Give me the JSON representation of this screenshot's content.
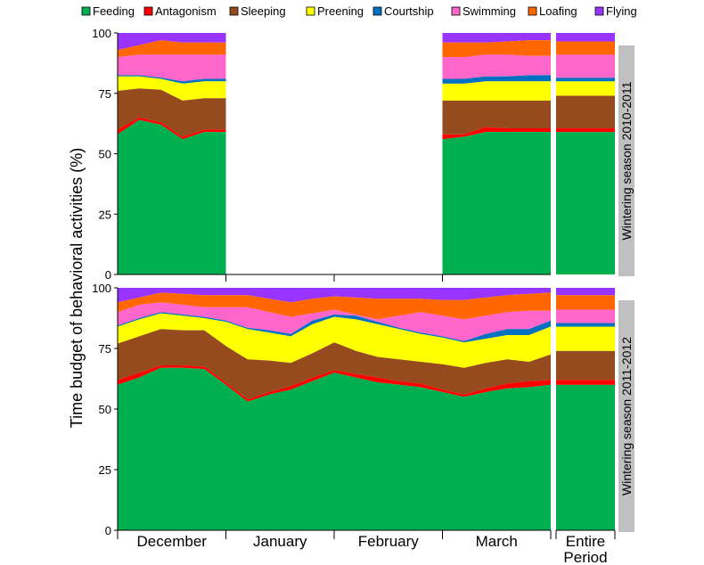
{
  "chart_data": {
    "type": "area",
    "ylabel": "Time budget of behavioral activities (%)",
    "ylim": [
      0,
      100
    ],
    "yticks": [
      0,
      25,
      50,
      75,
      100
    ],
    "months": [
      "December",
      "January",
      "February",
      "March"
    ],
    "entire_label": [
      "Entire",
      "Period"
    ],
    "legend": [
      {
        "name": "Feeding",
        "color": "#00b050"
      },
      {
        "name": "Antagonism",
        "color": "#ff0000"
      },
      {
        "name": "Sleeping",
        "color": "#964b1e"
      },
      {
        "name": "Preening",
        "color": "#ffff00"
      },
      {
        "name": "Courtship",
        "color": "#0070c0"
      },
      {
        "name": "Swimming",
        "color": "#ff66cc"
      },
      {
        "name": "Loafing",
        "color": "#ff6600"
      },
      {
        "name": "Flying",
        "color": "#9933ff"
      }
    ],
    "panels": [
      {
        "season": "Wintering season 2010-2011",
        "segments": [
          {
            "x": [
              0,
              1,
              2,
              3,
              4,
              5
            ],
            "cumulative": [
              [
                58,
                64,
                62,
                56,
                59,
                59
              ],
              [
                60,
                65,
                63,
                57,
                60,
                60
              ],
              [
                76,
                77,
                76.5,
                72,
                73,
                73
              ],
              [
                82,
                82,
                81,
                79,
                80,
                80
              ],
              [
                82.5,
                82.5,
                81.5,
                80,
                81,
                81
              ],
              [
                90,
                91,
                91,
                91,
                91,
                91
              ],
              [
                93,
                95,
                97,
                96,
                96,
                96
              ],
              [
                100,
                100,
                100,
                100,
                100,
                100
              ]
            ]
          },
          {
            "x": [
              15,
              16,
              17,
              18,
              19,
              20
            ],
            "cumulative": [
              [
                56,
                57,
                59,
                59,
                59,
                59
              ],
              [
                58,
                58,
                61,
                60.5,
                60.5,
                60.5
              ],
              [
                72,
                72,
                72,
                72,
                72,
                72
              ],
              [
                79,
                79,
                80,
                80,
                80,
                80
              ],
              [
                81,
                81,
                82,
                82,
                82.5,
                82.5
              ],
              [
                90,
                90,
                91,
                91,
                90.5,
                90.5
              ],
              [
                96,
                96,
                96,
                96.5,
                97,
                97
              ],
              [
                100,
                100,
                100,
                100,
                100,
                100
              ]
            ]
          }
        ],
        "entire": [
          59,
          60.5,
          74,
          80,
          81.5,
          91,
          96.5,
          100
        ]
      },
      {
        "season": "Wintering season 2011-2012",
        "segments": [
          {
            "x": [
              0,
              1,
              2,
              3,
              4,
              5,
              6,
              7,
              8,
              9,
              10,
              11,
              12,
              13,
              14,
              15,
              16,
              17,
              18,
              19,
              20
            ],
            "cumulative": [
              [
                60,
                63,
                67,
                67,
                66.5,
                60,
                53,
                56,
                58,
                61.5,
                65,
                63,
                61,
                60,
                59,
                57,
                55,
                57,
                58.5,
                59,
                60
              ],
              [
                62,
                65,
                68,
                68,
                67.5,
                61,
                54,
                57,
                59.5,
                63,
                66,
                64.5,
                63,
                61.5,
                60.5,
                58,
                56,
                58.5,
                60.5,
                61.5,
                62
              ],
              [
                77,
                80,
                83,
                82.5,
                82.5,
                76,
                70.5,
                70,
                69,
                73,
                77.5,
                74,
                71.5,
                70.5,
                69.5,
                68.5,
                67,
                69,
                70.5,
                69.5,
                72.5
              ],
              [
                84,
                87,
                89.5,
                88.5,
                87.5,
                86,
                83,
                81.5,
                80,
                85,
                88,
                87,
                85,
                83,
                81,
                79.5,
                77.5,
                79,
                80.5,
                80.5,
                84
              ],
              [
                84.5,
                87.5,
                90,
                89,
                88,
                86.5,
                83.5,
                82.5,
                81,
                86.5,
                89,
                88.5,
                86,
                83.5,
                81.5,
                80,
                78,
                81,
                83,
                83,
                86.5
              ],
              [
                90,
                93,
                94,
                93,
                92,
                92,
                92,
                90,
                88,
                89.5,
                91,
                89,
                87,
                88.5,
                90,
                88.5,
                87,
                88.5,
                90,
                90.5,
                90.5
              ],
              [
                94,
                96,
                98,
                97.5,
                97,
                97,
                97,
                95.5,
                94,
                95.5,
                96.5,
                96,
                95.5,
                95.5,
                95.5,
                95,
                95,
                96,
                97,
                97.5,
                98
              ],
              [
                100,
                100,
                100,
                100,
                100,
                100,
                100,
                100,
                100,
                100,
                100,
                100,
                100,
                100,
                100,
                100,
                100,
                100,
                100,
                100,
                100
              ]
            ]
          }
        ],
        "entire": [
          60,
          62,
          74,
          84,
          85.5,
          91,
          97,
          100
        ]
      }
    ],
    "grid": false,
    "legend_position": "top"
  }
}
